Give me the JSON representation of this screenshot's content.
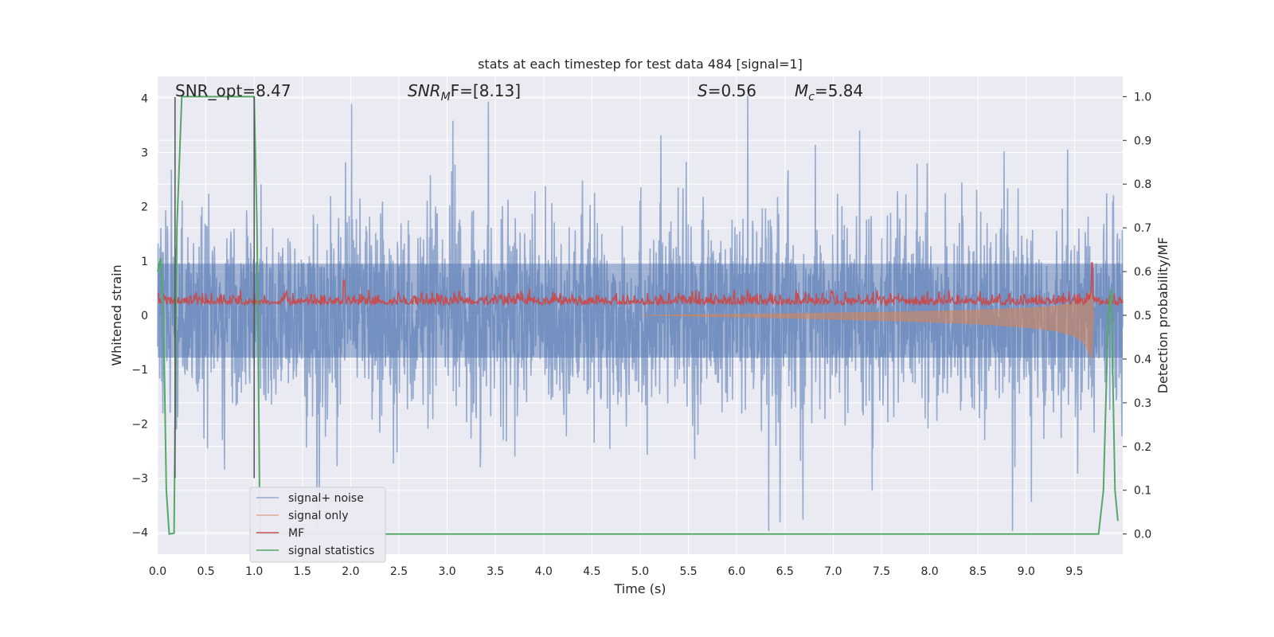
{
  "chart_data": {
    "type": "line",
    "title": "stats at each timestep for test data 484 [signal=1]",
    "xlabel": "Time (s)",
    "ylabel_left": "Whitened strain",
    "ylabel_right": "Detection probability/MF",
    "xlim": [
      0.0,
      10.0
    ],
    "ylim_left": [
      -4.4,
      4.4
    ],
    "ylim_right": [
      -0.04615,
      1.04615
    ],
    "x_ticks": [
      "0.0",
      "0.5",
      "1.0",
      "1.5",
      "2.0",
      "2.5",
      "3.0",
      "3.5",
      "4.0",
      "4.5",
      "5.0",
      "5.5",
      "6.0",
      "6.5",
      "7.0",
      "7.5",
      "8.0",
      "8.5",
      "9.0",
      "9.5"
    ],
    "y_left_ticks": [
      "4",
      "3",
      "2",
      "1",
      "0",
      "−1",
      "−2",
      "−3",
      "−4"
    ],
    "y_right_ticks": [
      "1.0",
      "0.9",
      "0.8",
      "0.7",
      "0.6",
      "0.5",
      "0.4",
      "0.3",
      "0.2",
      "0.1",
      "0.0"
    ],
    "grid": true,
    "legend_position": "lower-left",
    "annotations": {
      "snr_opt": "SNR_opt=8.47",
      "snr_mf_main": "SNR",
      "snr_mf_sub": "M",
      "snr_mf_rest": "F=[8.13]",
      "s_main": "S",
      "s_rest": "=0.56",
      "mc_main": "M",
      "mc_sub": "c",
      "mc_rest": "=5.84"
    },
    "vlines": [
      0.18,
      1.0
    ],
    "series": [
      {
        "name": "signal+ noise",
        "axis": "left",
        "color": "#4c72b0",
        "description_values": {
          "typical_abs": 1.0,
          "max": 4.05,
          "min": -3.97
        }
      },
      {
        "name": "signal only",
        "axis": "left",
        "color": "#dd8452",
        "envelope": {
          "x": [
            5.0,
            6.0,
            7.0,
            8.0,
            8.5,
            9.0,
            9.3,
            9.5,
            9.6,
            9.68,
            9.7
          ],
          "amp": [
            0.0,
            0.03,
            0.07,
            0.12,
            0.16,
            0.22,
            0.28,
            0.38,
            0.5,
            0.8,
            0.0
          ]
        }
      },
      {
        "name": "MF",
        "axis": "right",
        "color": "#c44e52",
        "baseline": 0.52,
        "spikes": [
          [
            1.93,
            0.58
          ],
          [
            9.68,
            0.62
          ]
        ]
      },
      {
        "name": "signal statistics",
        "axis": "right",
        "color": "#55a868",
        "x": [
          0.0,
          0.03,
          0.06,
          0.09,
          0.12,
          0.17,
          0.2,
          0.25,
          0.3,
          1.0,
          1.03,
          1.06,
          9.75,
          9.8,
          9.85,
          9.88,
          9.92,
          9.95
        ],
        "y": [
          0.6,
          0.63,
          0.5,
          0.1,
          0.0,
          0.002,
          0.7,
          1.0,
          1.0,
          1.0,
          0.7,
          0.0,
          0.0,
          0.1,
          0.5,
          0.56,
          0.1,
          0.03
        ]
      }
    ]
  }
}
